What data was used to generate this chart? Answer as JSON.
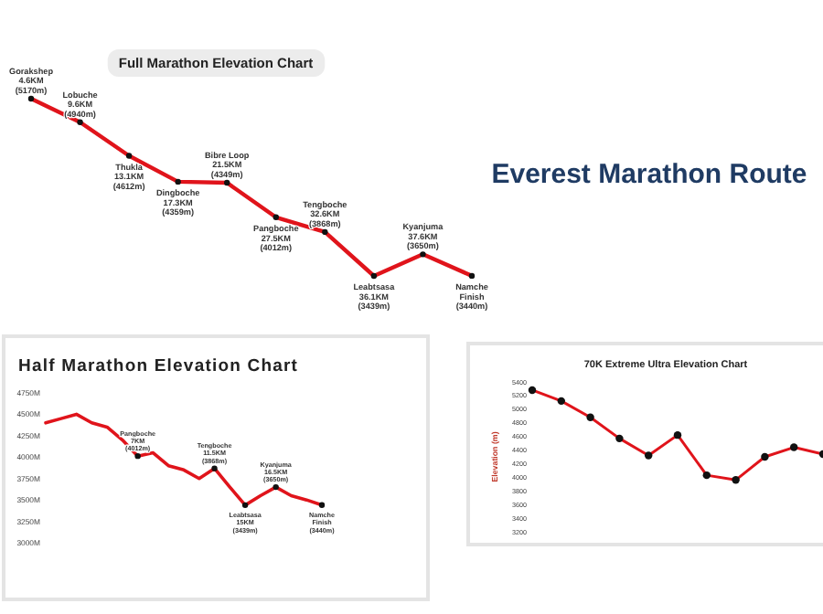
{
  "chart_data": [
    {
      "type": "other",
      "title": "Everest Marathon Route"
    },
    {
      "type": "line",
      "title": "Full Marathon Elevation Chart",
      "tick_labels": false,
      "marker": "circle",
      "categories": [
        null,
        null,
        null,
        null,
        null,
        null,
        null,
        null,
        null,
        null
      ],
      "series": [
        {
          "color": "#e0141b",
          "values": [
            5170,
            4940,
            4612,
            4359,
            4349,
            4012,
            3868,
            3439,
            3650,
            3440
          ],
          "value_labels": [
            "(5170m)",
            "(4940m)",
            "(4612m)",
            "(4359m)",
            "(4349m)",
            "(4012m)",
            "(3868m)",
            "(3439m)",
            "(3650m)",
            "(3440m)"
          ]
        }
      ],
      "annotations": [
        "Gorakshep\n4.6KM",
        "Lobuche\n9.6KM",
        "Thukla\n13.1KM",
        "Dingboche\n17.3KM",
        "Bibre Loop\n21.5KM",
        "Pangboche\n27.5KM",
        "Tengboche\n32.6KM",
        "Leabtsasa\n36.1KM",
        "Kyanjuma\n37.6KM",
        "Namche\nFinish"
      ]
    },
    {
      "type": "line",
      "title": "Half Marathon Elevation Chart",
      "ylim": [
        3000,
        4750
      ],
      "tick_labels": "y",
      "yticks": [
        {
          "value": 3000,
          "label": "3000M"
        },
        {
          "value": 3250,
          "label": "3250M"
        },
        {
          "value": 3500,
          "label": "3500M"
        },
        {
          "value": 3750,
          "label": "3750M"
        },
        {
          "value": 4000,
          "label": "4000M"
        },
        {
          "value": 4250,
          "label": "4250M"
        },
        {
          "value": 4500,
          "label": "4500M"
        },
        {
          "value": 4750,
          "label": "4750M"
        }
      ],
      "categories": [
        null,
        null,
        null,
        null,
        null,
        null,
        null,
        null,
        null,
        null,
        null,
        null,
        null,
        null,
        null,
        null,
        null,
        null,
        null
      ],
      "series": [
        {
          "color": "#e0141b",
          "values": [
            4400,
            4450,
            4500,
            4400,
            4350,
            4200,
            4012,
            4050,
            3900,
            3850,
            3750,
            3868,
            3650,
            3439,
            3550,
            3650,
            3550,
            3500,
            3440
          ],
          "value_labels": [
            null,
            null,
            null,
            null,
            null,
            null,
            "(4012m)",
            null,
            null,
            null,
            null,
            "(3868m)",
            null,
            "(3439m)",
            null,
            "(3650m)",
            null,
            null,
            "(3440m)"
          ]
        }
      ],
      "annotations": [
        "Pangboche\n7KM",
        "Tengboche\n11.5KM",
        "Leabtsasa\n15KM",
        "Kyanjuma\n16.5KM",
        "Namche\nFinish"
      ]
    },
    {
      "type": "line",
      "title": "70K Extreme Ultra Elevation Chart",
      "ylabel": "Elevation (m)",
      "ylim": [
        3200,
        5400
      ],
      "tick_labels": "y",
      "marker": "circle",
      "yticks": [
        3200,
        3400,
        3600,
        3800,
        4000,
        4200,
        4400,
        4600,
        4800,
        5000,
        5200,
        5400
      ],
      "categories": [
        null,
        null,
        null,
        null,
        null,
        null,
        null,
        null,
        null,
        null,
        null
      ],
      "series": [
        {
          "color": "#e0141b",
          "values": [
            5280,
            5120,
            4880,
            4570,
            4320,
            4620,
            4030,
            3960,
            4300,
            4440,
            4340
          ]
        }
      ]
    }
  ]
}
